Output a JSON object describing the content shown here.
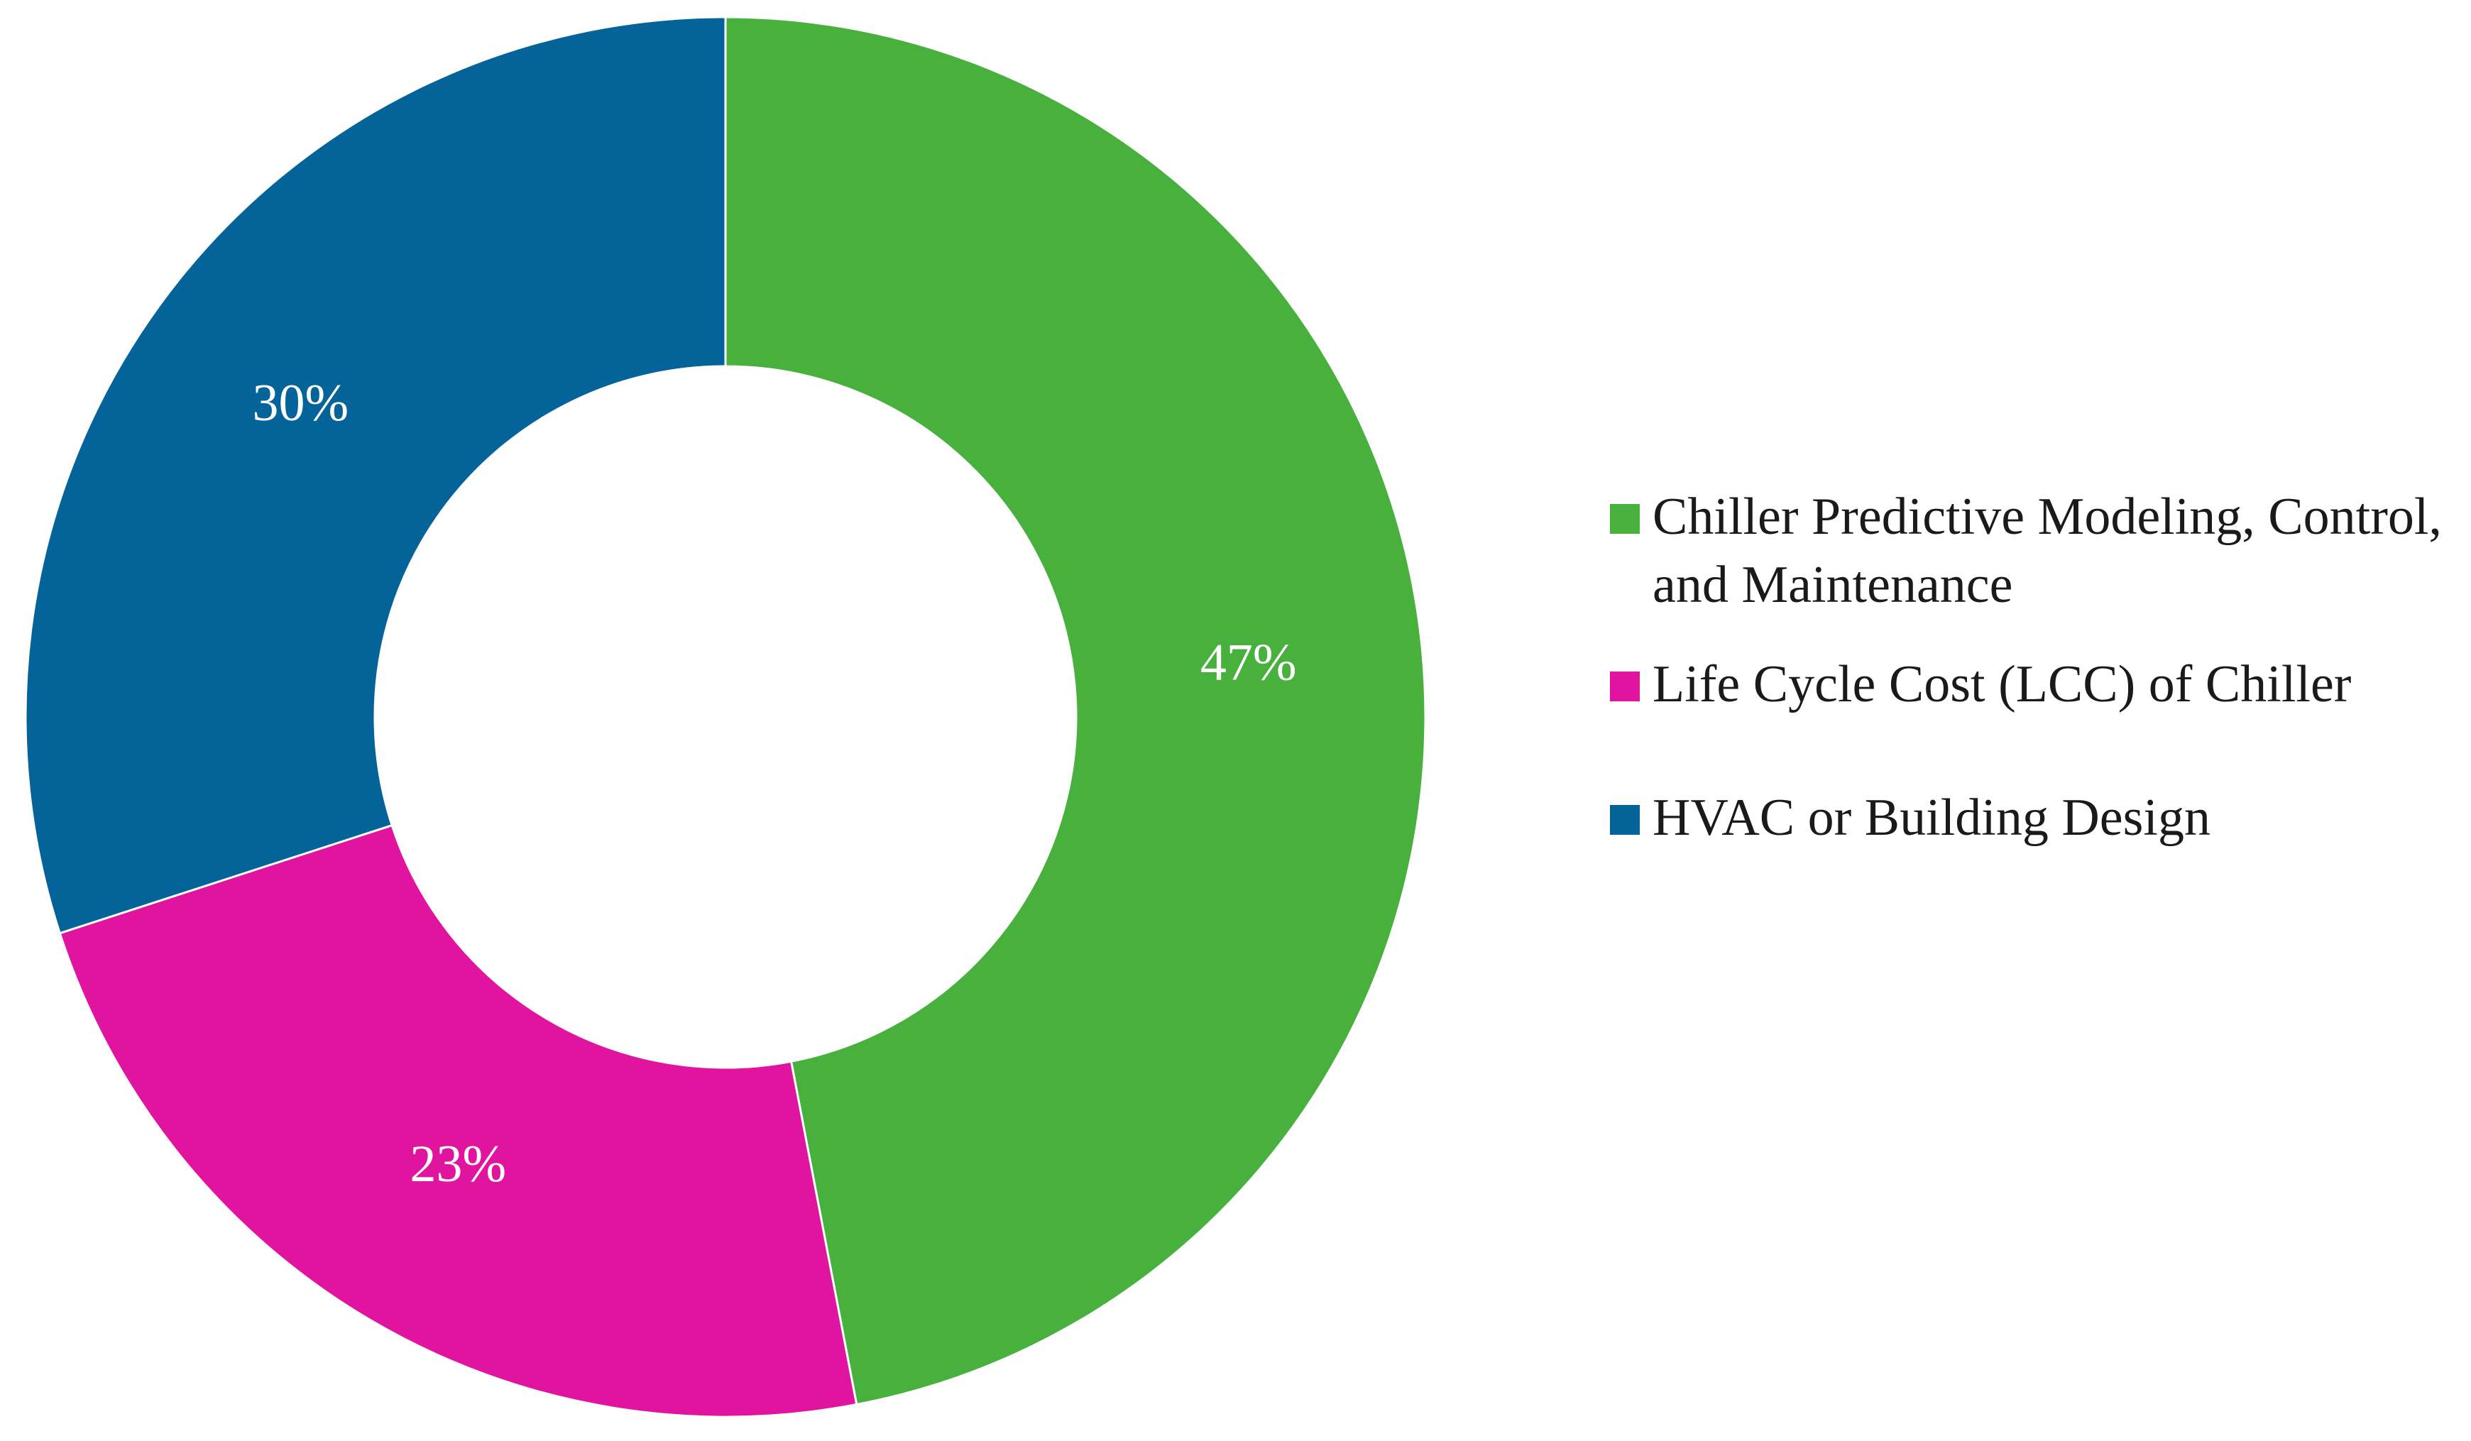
{
  "chart_data": {
    "type": "pie",
    "donut": true,
    "slices": [
      {
        "label": "Chiller Predictive Modeling, Control, and Maintenance",
        "value": 47,
        "value_label": "47%",
        "color": "#48b03d"
      },
      {
        "label": "Life Cycle Cost (LCC) of Chiller",
        "value": 23,
        "value_label": "23%",
        "color": "#e114a0"
      },
      {
        "label": "HVAC or Building Design",
        "value": 30,
        "value_label": "30%",
        "color": "#046399"
      }
    ],
    "legend_position": "right",
    "start_angle": "12 o'clock",
    "direction": "clockwise"
  },
  "legend": {
    "items": [
      {
        "label": "Chiller Predictive Modeling, Control, and Maintenance",
        "color": "#48b03d"
      },
      {
        "label": "Life Cycle Cost (LCC) of Chiller",
        "color": "#e114a0"
      },
      {
        "label": "HVAC or Building Design",
        "color": "#046399"
      }
    ]
  }
}
